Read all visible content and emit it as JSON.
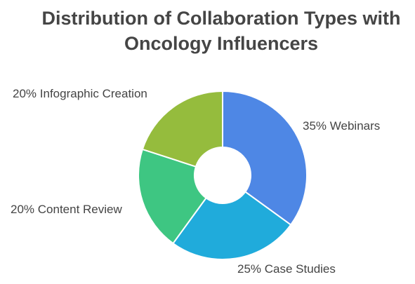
{
  "chart_data": {
    "type": "donut",
    "title": "Distribution of Collaboration Types with Oncology Influencers",
    "categories": [
      "Webinars",
      "Case Studies",
      "Content Review",
      "Infographic Creation"
    ],
    "values": [
      35,
      25,
      20,
      20
    ],
    "value_labels": [
      "35%",
      "25%",
      "20%",
      "20%"
    ],
    "colors": [
      "#4e87e5",
      "#20abdb",
      "#3ec682",
      "#95bc3d"
    ]
  }
}
